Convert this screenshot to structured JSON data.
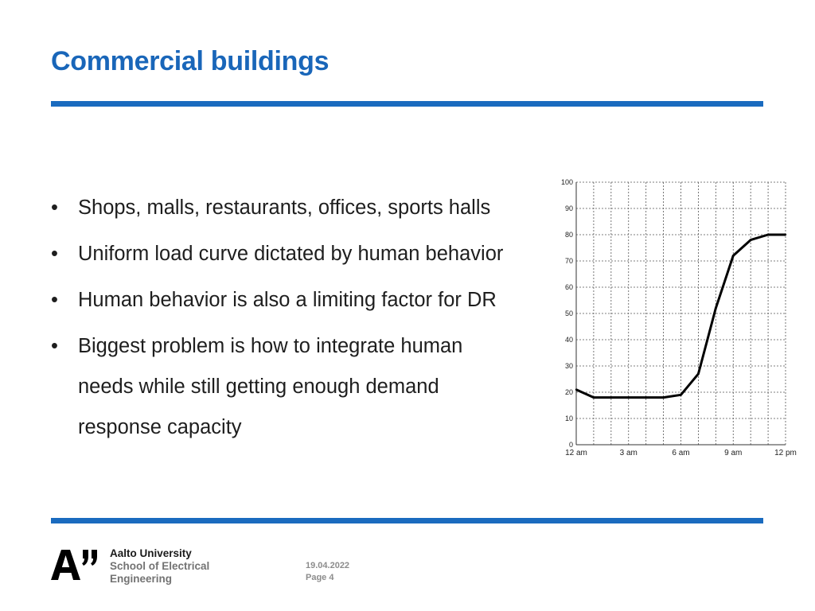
{
  "slide": {
    "title": "Commercial buildings",
    "bullets": [
      "Shops, malls, restaurants, offices, sports halls",
      "Uniform load curve dictated by human behavior",
      "Human behavior is also a limiting factor for DR",
      "Biggest problem is how to integrate human needs while still getting enough demand response capacity"
    ],
    "bullet_wrapped": [
      "Biggest problem is how to integrate human",
      "needs while still getting enough demand",
      "response capacity"
    ],
    "bullet_symbol": "•"
  },
  "footer": {
    "logo_icon": "aalto-a-logo",
    "university_line1": "Aalto University",
    "university_line2": "School of Electrical",
    "university_line3": "Engineering",
    "date": "19.04.2022",
    "page": "Page 4"
  },
  "colors": {
    "title": "#1966b9",
    "rule": "#1a6bbf",
    "text": "#1e1e1e"
  },
  "chart_data": {
    "type": "line",
    "x": [
      0,
      1,
      2,
      3,
      4,
      5,
      6,
      7,
      8,
      9,
      10,
      11,
      12
    ],
    "x_tick_labels": [
      {
        "x": 0,
        "label": "12 am"
      },
      {
        "x": 3,
        "label": "3 am"
      },
      {
        "x": 6,
        "label": "6 am"
      },
      {
        "x": 9,
        "label": "9 am"
      },
      {
        "x": 12,
        "label": "12 pm"
      }
    ],
    "series": [
      {
        "values": [
          21,
          18,
          18,
          18,
          18,
          18,
          19,
          27,
          52,
          72,
          78,
          80,
          80
        ]
      }
    ],
    "y_ticks": [
      0,
      10,
      20,
      30,
      40,
      50,
      60,
      70,
      80,
      90,
      100
    ],
    "ylim": [
      0,
      100
    ],
    "xlim": [
      0,
      12
    ],
    "grid": true,
    "grid_style": "dashed",
    "title": "",
    "xlabel": "",
    "ylabel": ""
  }
}
